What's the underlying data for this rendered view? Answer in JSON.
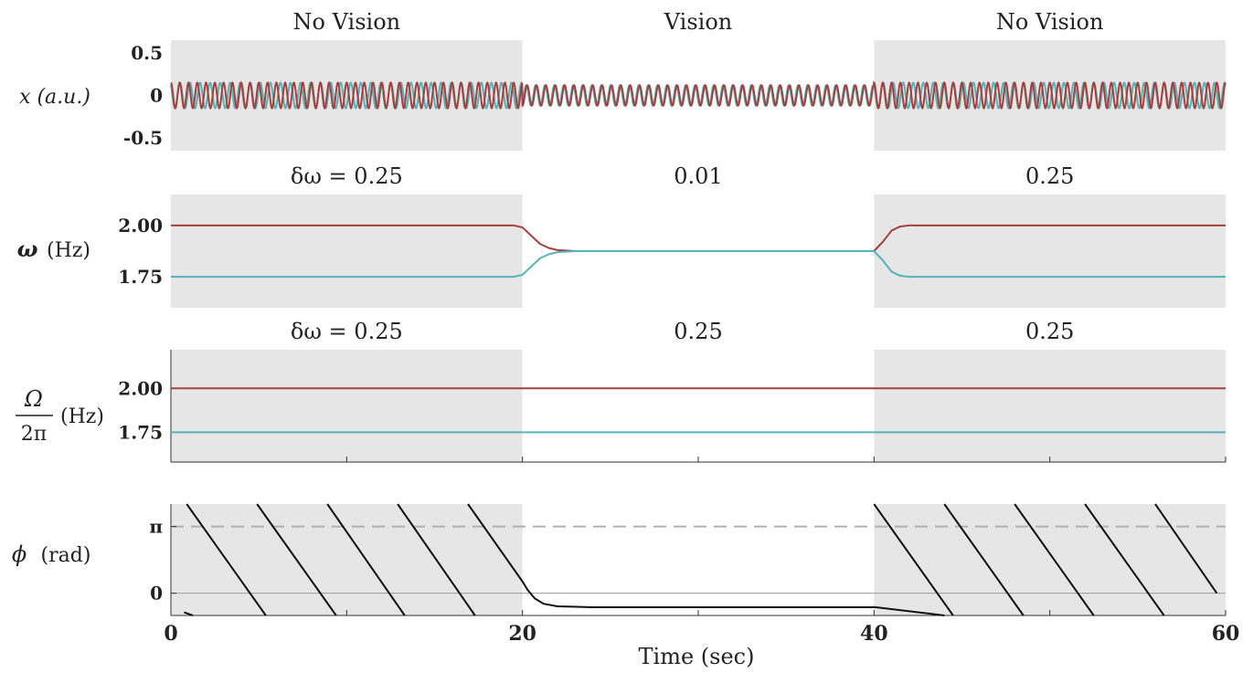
{
  "chart_data": [
    {
      "type": "line",
      "panel": "x",
      "ylabel": "x (a.u.)",
      "ylim": [
        -0.65,
        0.65
      ],
      "yticks": [
        0.5,
        0,
        -0.5
      ],
      "ytick_labels": [
        "0.5",
        "0",
        "-0.5"
      ],
      "xlim": [
        0,
        60
      ],
      "condition_labels": [
        "No Vision",
        "Vision",
        "No Vision"
      ],
      "shaded_intervals": [
        [
          0,
          20
        ],
        [
          40,
          60
        ]
      ],
      "grid": false,
      "series": [
        {
          "color": "#55b3bc",
          "amplitude_by_segment": [
            0.15,
            0.12,
            0.15
          ],
          "frequency_hz_by_segment": [
            1.75,
            1.875,
            1.75
          ]
        },
        {
          "color": "#a6403c",
          "amplitude_by_segment": [
            0.15,
            0.12,
            0.15
          ],
          "frequency_hz_by_segment": [
            2.0,
            1.875,
            2.0
          ]
        }
      ]
    },
    {
      "type": "line",
      "panel": "omega",
      "ylabel_symbol": "ω",
      "ylabel_unit": "(Hz)",
      "ylim": [
        1.6,
        2.15
      ],
      "yticks": [
        2.0,
        1.75
      ],
      "ytick_labels": [
        "2.00",
        "1.75"
      ],
      "xlim": [
        0,
        60
      ],
      "annotations": [
        "δω = 0.25",
        "0.01",
        "0.25"
      ],
      "shaded_intervals": [
        [
          0,
          20
        ],
        [
          40,
          60
        ]
      ],
      "grid": false,
      "series": [
        {
          "color": "#a6403c",
          "x": [
            0,
            19.5,
            20,
            20.5,
            21,
            21.5,
            22,
            23,
            40,
            40.5,
            41,
            41.5,
            42,
            60
          ],
          "y": [
            2.0,
            2.0,
            1.99,
            1.95,
            1.91,
            1.89,
            1.88,
            1.875,
            1.875,
            1.92,
            1.975,
            1.995,
            2.0,
            2.0
          ]
        },
        {
          "color": "#55b3bc",
          "x": [
            0,
            19.5,
            20,
            20.5,
            21,
            21.5,
            22,
            23,
            40,
            40.5,
            41,
            41.5,
            42,
            60
          ],
          "y": [
            1.75,
            1.75,
            1.76,
            1.8,
            1.84,
            1.86,
            1.87,
            1.875,
            1.875,
            1.83,
            1.775,
            1.755,
            1.75,
            1.75
          ]
        }
      ]
    },
    {
      "type": "line",
      "panel": "Omega",
      "ylabel_numerator": "Ω",
      "ylabel_denominator": "2π",
      "ylabel_unit": "(Hz)",
      "ylim": [
        1.58,
        2.22
      ],
      "yticks": [
        2.0,
        1.75
      ],
      "ytick_labels": [
        "2.00",
        "1.75"
      ],
      "xlim": [
        0,
        60
      ],
      "annotations": [
        "δω = 0.25",
        "0.25",
        "0.25"
      ],
      "shaded_intervals": [
        [
          0,
          20
        ],
        [
          40,
          60
        ]
      ],
      "grid": false,
      "series": [
        {
          "color": "#a6403c",
          "x": [
            0,
            60
          ],
          "y": [
            2.0,
            2.0
          ]
        },
        {
          "color": "#55b3bc",
          "x": [
            0,
            60
          ],
          "y": [
            1.75,
            1.75
          ]
        }
      ]
    },
    {
      "type": "line",
      "panel": "phi",
      "ylabel_symbol": "ϕ",
      "ylabel_unit": "(rad)",
      "ylim": [
        -1.05,
        4.2
      ],
      "yticks": [
        3.14159,
        0
      ],
      "ytick_labels": [
        "π",
        "0"
      ],
      "xlim": [
        0,
        60
      ],
      "xticks": [
        0,
        20,
        40,
        60
      ],
      "xtick_labels": [
        "0",
        "20",
        "40",
        "60"
      ],
      "xlabel": "Time (sec)",
      "shaded_intervals": [
        [
          0,
          20
        ],
        [
          40,
          60
        ]
      ],
      "reference_lines": [
        {
          "y": 3.14159,
          "style": "dashed"
        },
        {
          "y": 0,
          "style": "solid"
        }
      ],
      "grid": false,
      "series": [
        {
          "name": "",
          "color": "#111111",
          "segments": [
            [
              [
                0.75,
                -0.9
              ],
              [
                1.25,
                -1.05
              ]
            ],
            [
              [
                0.9,
                4.2
              ],
              [
                5.4,
                -1.05
              ]
            ],
            [
              [
                4.9,
                4.2
              ],
              [
                9.4,
                -1.05
              ]
            ],
            [
              [
                8.9,
                4.2
              ],
              [
                13.3,
                -1.05
              ]
            ],
            [
              [
                12.9,
                4.2
              ],
              [
                17.3,
                -1.05
              ]
            ],
            [
              [
                16.9,
                4.2
              ],
              [
                20.0,
                0.55
              ],
              [
                20.3,
                0.15
              ],
              [
                20.7,
                -0.25
              ],
              [
                21.2,
                -0.5
              ],
              [
                22.0,
                -0.62
              ],
              [
                24.0,
                -0.66
              ],
              [
                39.9,
                -0.66
              ],
              [
                40.0,
                -0.65
              ],
              [
                44.0,
                -1.05
              ]
            ],
            [
              [
                40.0,
                4.2
              ],
              [
                44.5,
                -1.05
              ]
            ],
            [
              [
                44.0,
                4.2
              ],
              [
                48.5,
                -1.05
              ]
            ],
            [
              [
                48.0,
                4.2
              ],
              [
                52.5,
                -1.05
              ]
            ],
            [
              [
                52.0,
                4.2
              ],
              [
                56.5,
                -1.05
              ]
            ],
            [
              [
                56.0,
                4.2
              ],
              [
                59.5,
                0.0
              ]
            ]
          ]
        }
      ]
    }
  ]
}
